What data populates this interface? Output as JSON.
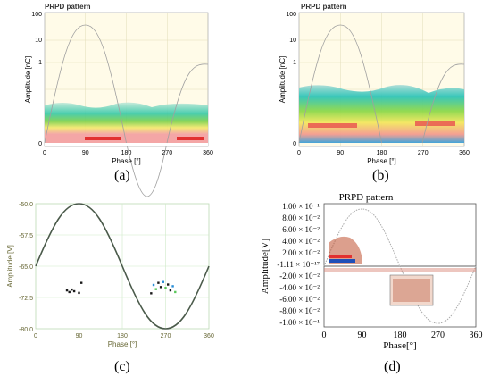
{
  "colors": {
    "panel_bg": "#fffbe8",
    "grid": "#d8d2b0",
    "sine": "#9a9a9a",
    "sine_dark": "#404040",
    "c_grid": "#c8e6c0",
    "c_axis_text": "#666633",
    "blue": "#1f4fb8",
    "red": "#e23030"
  },
  "captions": {
    "a": "(a)",
    "b": "(b)",
    "c": "(c)",
    "d": "(d)"
  },
  "panel_a": {
    "title": "PRPD pattern",
    "ylabel": "Amplitude [nC]",
    "xlabel": "Phase [°]",
    "ytick_labels": [
      "100",
      "10",
      "1",
      "0"
    ],
    "xtick_labels": [
      "0",
      "90",
      "180",
      "270",
      "360"
    ]
  },
  "panel_b": {
    "title": "PRPD pattern",
    "ylabel": "Amplitude [nC]",
    "xlabel": "Phase [°]",
    "ytick_labels": [
      "100",
      "10",
      "1",
      "0"
    ],
    "xtick_labels": [
      "0",
      "90",
      "180",
      "270",
      "360"
    ]
  },
  "panel_c": {
    "ylabel": "Amplitude [V]",
    "xlabel": "Phase [°]",
    "ytick_labels": [
      "-50.0",
      "-57.5",
      "-65.0",
      "-72.5",
      "-80.0"
    ],
    "xtick_labels": [
      "0",
      "90",
      "180",
      "270",
      "360"
    ]
  },
  "panel_d": {
    "title": "PRPD pattern",
    "ylabel": "Amplitude[V]",
    "xlabel": "Phase[°]",
    "ytick_labels": [
      "1.00 × 10⁻¹",
      "8.00 × 10⁻²",
      "6.00 × 10⁻²",
      "4.00 × 10⁻²",
      "2.00 × 10⁻²",
      "-1.11 × 10⁻¹⁷",
      "-2.00 × 10⁻²",
      "-4.00 × 10⁻²",
      "-6.00 × 10⁻²",
      "-8.00 × 10⁻²",
      "-1.00 × 10⁻¹"
    ],
    "xtick_labels": [
      "0",
      "90",
      "180",
      "270",
      "360"
    ]
  },
  "chart_data": [
    {
      "type": "heatmap",
      "title": "PRPD pattern",
      "xlabel": "Phase [°]",
      "ylabel": "Amplitude [nC]",
      "xlim": [
        0,
        360
      ],
      "yscale": "log",
      "ytick_values": [
        100,
        10,
        1,
        0
      ],
      "xtick_values": [
        0,
        90,
        180,
        270,
        360
      ],
      "series": [
        {
          "values": []
        }
      ]
    },
    {
      "type": "heatmap",
      "title": "PRPD pattern",
      "xlabel": "Phase [°]",
      "ylabel": "Amplitude [nC]",
      "xlim": [
        0,
        360
      ],
      "yscale": "log",
      "ytick_values": [
        100,
        10,
        1,
        0
      ],
      "xtick_values": [
        0,
        90,
        180,
        270,
        360
      ],
      "series": [
        {
          "values": []
        }
      ]
    },
    {
      "type": "scatter",
      "xlabel": "Phase [°]",
      "ylabel": "Amplitude [V]",
      "xlim": [
        0,
        360
      ],
      "ylim": [
        -80,
        -50
      ],
      "ytick_values": [
        -50,
        -57.5,
        -65,
        -72.5,
        -80
      ],
      "xtick_values": [
        0,
        90,
        180,
        270,
        360
      ],
      "series": [
        {
          "x": [
            65,
            70,
            75,
            80,
            90,
            95
          ],
          "y": [
            -70.8,
            -71.2,
            -70.6,
            -71.0,
            -71.4,
            -69.0
          ]
        },
        {
          "x": [
            240,
            245,
            250,
            255,
            260,
            265,
            270,
            275,
            280,
            285,
            290
          ],
          "y": [
            -71.5,
            -69.5,
            -70.5,
            -69.0,
            -70.0,
            -68.8,
            -70.2,
            -69.4,
            -70.8,
            -69.8,
            -71.2
          ]
        }
      ]
    },
    {
      "type": "scatter",
      "title": "PRPD pattern",
      "xlabel": "Phase[°]",
      "ylabel": "Amplitude[V]",
      "xlim": [
        0,
        360
      ],
      "ylim": [
        -0.1,
        0.1
      ],
      "xtick_values": [
        0,
        90,
        180,
        270,
        360
      ],
      "ytick_values": [
        0.1,
        0.08,
        0.06,
        0.04,
        0.02,
        -1.11e-17,
        -0.02,
        -0.04,
        -0.06,
        -0.08,
        -0.1
      ],
      "series": [
        {
          "x": [
            20,
            30,
            40,
            50,
            60,
            70,
            80
          ],
          "y": [
            0.01,
            0.02,
            0.03,
            0.025,
            0.02,
            0.015,
            0.008
          ]
        },
        {
          "x": [
            180,
            200,
            220,
            240
          ],
          "y": [
            -0.02,
            -0.04,
            -0.06,
            -0.05
          ]
        }
      ]
    }
  ]
}
